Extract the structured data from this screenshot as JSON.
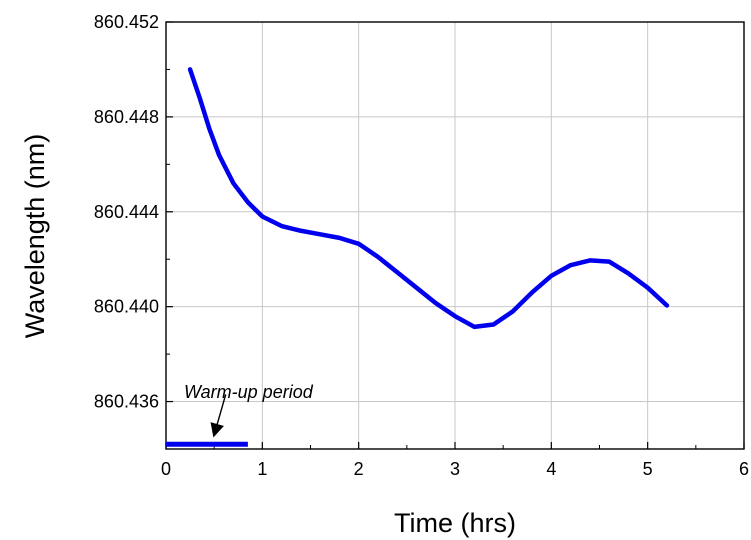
{
  "chart_data": {
    "type": "line",
    "title": "",
    "xlabel": "Time (hrs)",
    "ylabel": "Wavelength (nm)",
    "xlim": [
      0,
      6
    ],
    "ylim": [
      860.434,
      860.452
    ],
    "x_ticks": [
      "0",
      "1",
      "2",
      "3",
      "4",
      "5",
      "6"
    ],
    "y_ticks": [
      "860.436",
      "860.440",
      "860.444",
      "860.448",
      "860.452"
    ],
    "x_tick_values": [
      0,
      1,
      2,
      3,
      4,
      5,
      6
    ],
    "y_tick_values": [
      860.436,
      860.44,
      860.444,
      860.448,
      860.452
    ],
    "grid": true,
    "series": [
      {
        "color": "#0000ee",
        "x": [
          0.25,
          0.35,
          0.45,
          0.55,
          0.7,
          0.85,
          1.0,
          1.2,
          1.4,
          1.6,
          1.8,
          2.0,
          2.2,
          2.4,
          2.6,
          2.8,
          3.0,
          3.2,
          3.4,
          3.6,
          3.8,
          4.0,
          4.2,
          4.4,
          4.6,
          4.8,
          5.0,
          5.2
        ],
        "y": [
          860.45,
          860.4488,
          860.4475,
          860.4464,
          860.4452,
          860.4444,
          860.4438,
          860.4434,
          860.4432,
          860.44305,
          860.4429,
          860.44265,
          860.4421,
          860.44145,
          860.4408,
          860.44015,
          860.4396,
          860.43915,
          860.43925,
          860.4398,
          860.4406,
          860.4413,
          860.44175,
          860.44195,
          860.4419,
          860.4414,
          860.4408,
          860.44005
        ]
      }
    ],
    "annotation": {
      "text": "Warm-up period",
      "bar_x": [
        0,
        0.85
      ],
      "bar_y": 860.4342,
      "arrow_from": [
        0.62,
        860.4363
      ],
      "arrow_to": [
        0.5,
        860.4346
      ]
    }
  }
}
